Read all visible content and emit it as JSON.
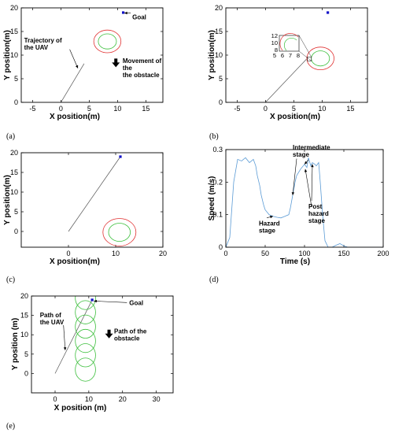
{
  "chart_data": [
    {
      "id": "a",
      "type": "scatter",
      "panel_label": "(a)",
      "xlabel": "X position(m)",
      "ylabel": "Y position(m)",
      "xlim": [
        -7,
        18
      ],
      "ylim": [
        0,
        20
      ],
      "xticks": [
        -5,
        0,
        5,
        10,
        15
      ],
      "yticks": [
        0,
        5,
        10,
        15,
        20
      ],
      "series": [
        {
          "kind": "line",
          "x": [
            0,
            4.1
          ],
          "y": [
            0,
            8.2
          ]
        },
        {
          "kind": "goal",
          "x": [
            11
          ],
          "y": [
            19
          ]
        },
        {
          "kind": "circle",
          "cx": 8.2,
          "cy": 12.9,
          "r": 2.4,
          "color": "#e03030"
        },
        {
          "kind": "circle",
          "cx": 8.2,
          "cy": 12.9,
          "r": 1.6,
          "color": "#3cbf3c"
        }
      ],
      "annotations": [
        {
          "lines": [
            "Goal"
          ],
          "x": 12.6,
          "y": 17.6,
          "ax": 11.2,
          "ay": 18.9
        },
        {
          "lines": [
            "Trajectory of",
            "the UAV"
          ],
          "x": -6.5,
          "y": 12.7,
          "ax": 3.0,
          "ay": 7.2
        },
        {
          "lines": [
            "Movement of",
            "the",
            "the obstacle"
          ],
          "x": 10.9,
          "y": 8.3,
          "arrow": "down",
          "bx": 9.7,
          "by": 8.6
        }
      ]
    },
    {
      "id": "b",
      "type": "scatter",
      "panel_label": "(b)",
      "xlabel": "X position(m)",
      "ylabel": "Y position(m)",
      "xlim": [
        -7,
        18
      ],
      "ylim": [
        0,
        20
      ],
      "xticks": [
        -5,
        0,
        5,
        10,
        15
      ],
      "yticks": [
        0,
        5,
        10,
        15,
        20
      ],
      "series": [
        {
          "kind": "line",
          "x": [
            0,
            7.2
          ],
          "y": [
            0,
            9.1
          ]
        },
        {
          "kind": "goal",
          "x": [
            11
          ],
          "y": [
            19
          ]
        },
        {
          "kind": "circle",
          "cx": 9.7,
          "cy": 9.3,
          "r": 2.4,
          "color": "#e03030"
        },
        {
          "kind": "circle",
          "cx": 9.7,
          "cy": 9.3,
          "r": 1.6,
          "color": "#3cbf3c"
        }
      ],
      "inset": {
        "xticks": [
          "5",
          "6",
          "7",
          "8"
        ],
        "yticks": [
          "12",
          "10",
          "8"
        ]
      }
    },
    {
      "id": "c",
      "type": "scatter",
      "panel_label": "(c)",
      "xlabel": "X position(m)",
      "ylabel": "Y position(m)",
      "xlim": [
        -10,
        20
      ],
      "ylim": [
        -4,
        20
      ],
      "xticks": [
        0,
        10,
        20
      ],
      "yticks": [
        0,
        5,
        10,
        15,
        20
      ],
      "series": [
        {
          "kind": "line",
          "x": [
            0,
            11
          ],
          "y": [
            0,
            19
          ]
        },
        {
          "kind": "goal",
          "x": [
            11
          ],
          "y": [
            19
          ]
        },
        {
          "kind": "circle",
          "cx": 10.8,
          "cy": -0.2,
          "r": 3.5,
          "color": "#e03030"
        },
        {
          "kind": "circle",
          "cx": 10.8,
          "cy": -0.2,
          "r": 2.3,
          "color": "#3cbf3c"
        }
      ]
    },
    {
      "id": "d",
      "type": "line",
      "panel_label": "(d)",
      "xlabel": "Time (s)",
      "ylabel": "Speed (m/s)",
      "xlim": [
        0,
        200
      ],
      "ylim": [
        0,
        0.3
      ],
      "xticks": [
        0,
        50,
        100,
        150,
        200
      ],
      "yticks": [
        0,
        0.1,
        0.2,
        0.3
      ],
      "series": [
        {
          "kind": "line",
          "color": "#5b9bd5",
          "x": [
            0,
            5,
            10,
            15,
            20,
            25,
            30,
            35,
            38,
            40,
            43,
            45,
            48,
            50,
            55,
            60,
            65,
            70,
            75,
            80,
            82,
            85,
            88,
            90,
            95,
            100,
            103,
            105,
            108,
            110,
            113,
            115,
            118,
            120,
            123,
            126,
            130,
            135,
            140,
            145,
            150,
            155,
            160,
            200
          ],
          "y": [
            0,
            0.03,
            0.2,
            0.27,
            0.265,
            0.275,
            0.26,
            0.27,
            0.25,
            0.22,
            0.19,
            0.16,
            0.13,
            0.115,
            0.1,
            0.095,
            0.092,
            0.09,
            0.095,
            0.1,
            0.12,
            0.16,
            0.2,
            0.22,
            0.24,
            0.255,
            0.245,
            0.275,
            0.25,
            0.26,
            0.255,
            0.25,
            0.26,
            0.2,
            0.1,
            0.02,
            0.0,
            0.0,
            0.006,
            0.011,
            0.004,
            0.0,
            0.0,
            0.0
          ]
        }
      ],
      "annotations": [
        {
          "lines": [
            "Intermediate",
            "stage"
          ],
          "x": 85,
          "y": 0.3,
          "ax": 100,
          "ay": 0.255
        },
        {
          "lines": [
            "Hazard",
            "stage"
          ],
          "x": 42,
          "y": 0.066,
          "ax": 60,
          "ay": 0.095
        },
        {
          "lines": [
            "Post",
            "hazard",
            "stage"
          ],
          "x": 105,
          "y": 0.118,
          "ax": 110,
          "ay": 0.255
        }
      ]
    },
    {
      "id": "e",
      "type": "scatter",
      "panel_label": "(e)",
      "xlabel": "X position (m)",
      "ylabel": "Y position (m)",
      "xlim": [
        -7,
        35
      ],
      "ylim": [
        -5,
        20
      ],
      "xticks": [
        0,
        10,
        20,
        30
      ],
      "yticks": [
        0,
        5,
        10,
        15,
        20
      ],
      "series": [
        {
          "kind": "line",
          "x": [
            0,
            11
          ],
          "y": [
            0,
            19
          ]
        },
        {
          "kind": "goal",
          "x": [
            11
          ],
          "y": [
            19
          ]
        },
        {
          "kind": "circle-stack",
          "cx": 9.0,
          "cys": [
            19.5,
            15.8,
            12.1,
            8.4,
            4.7,
            1.0
          ],
          "r": 3.0,
          "color": "#3cbf3c"
        }
      ],
      "annotations": [
        {
          "lines": [
            "Goal"
          ],
          "x": 22,
          "y": 17.7,
          "ax": 11.5,
          "ay": 18.7
        },
        {
          "lines": [
            "Path of",
            "the UAV"
          ],
          "x": -4.5,
          "y": 14.5,
          "ax": 3.0,
          "ay": 6.0
        },
        {
          "lines": [
            "Path of the",
            "obstacle"
          ],
          "x": 17.5,
          "y": 10.3,
          "arrow": "down",
          "bx": 16.0,
          "by": 10.5
        }
      ]
    }
  ]
}
